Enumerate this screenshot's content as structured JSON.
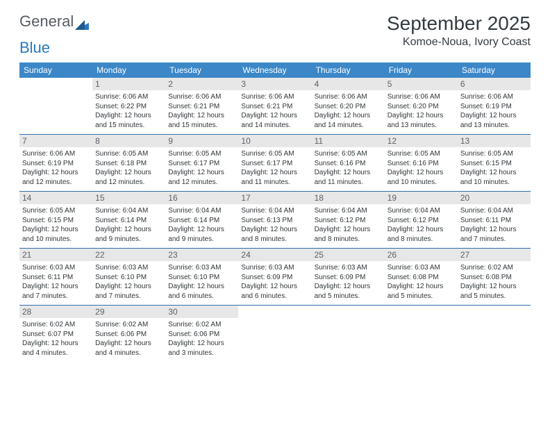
{
  "logo": {
    "word1": "General",
    "word2": "Blue"
  },
  "month_title": "September 2025",
  "location": "Komoe-Noua, Ivory Coast",
  "colors": {
    "header_bg": "#3b87c8",
    "header_text": "#ffffff",
    "daynum_bg": "#e7e7e7",
    "daynum_text": "#5b6168",
    "body_text": "#303538",
    "rule": "#2f6ea6",
    "logo_gray": "#555c63",
    "logo_blue": "#2879c0"
  },
  "day_headers": [
    "Sunday",
    "Monday",
    "Tuesday",
    "Wednesday",
    "Thursday",
    "Friday",
    "Saturday"
  ],
  "weeks": [
    [
      null,
      {
        "n": "1",
        "sr": "Sunrise: 6:06 AM",
        "ss": "Sunset: 6:22 PM",
        "d1": "Daylight: 12 hours",
        "d2": "and 15 minutes."
      },
      {
        "n": "2",
        "sr": "Sunrise: 6:06 AM",
        "ss": "Sunset: 6:21 PM",
        "d1": "Daylight: 12 hours",
        "d2": "and 15 minutes."
      },
      {
        "n": "3",
        "sr": "Sunrise: 6:06 AM",
        "ss": "Sunset: 6:21 PM",
        "d1": "Daylight: 12 hours",
        "d2": "and 14 minutes."
      },
      {
        "n": "4",
        "sr": "Sunrise: 6:06 AM",
        "ss": "Sunset: 6:20 PM",
        "d1": "Daylight: 12 hours",
        "d2": "and 14 minutes."
      },
      {
        "n": "5",
        "sr": "Sunrise: 6:06 AM",
        "ss": "Sunset: 6:20 PM",
        "d1": "Daylight: 12 hours",
        "d2": "and 13 minutes."
      },
      {
        "n": "6",
        "sr": "Sunrise: 6:06 AM",
        "ss": "Sunset: 6:19 PM",
        "d1": "Daylight: 12 hours",
        "d2": "and 13 minutes."
      }
    ],
    [
      {
        "n": "7",
        "sr": "Sunrise: 6:06 AM",
        "ss": "Sunset: 6:19 PM",
        "d1": "Daylight: 12 hours",
        "d2": "and 12 minutes."
      },
      {
        "n": "8",
        "sr": "Sunrise: 6:05 AM",
        "ss": "Sunset: 6:18 PM",
        "d1": "Daylight: 12 hours",
        "d2": "and 12 minutes."
      },
      {
        "n": "9",
        "sr": "Sunrise: 6:05 AM",
        "ss": "Sunset: 6:17 PM",
        "d1": "Daylight: 12 hours",
        "d2": "and 12 minutes."
      },
      {
        "n": "10",
        "sr": "Sunrise: 6:05 AM",
        "ss": "Sunset: 6:17 PM",
        "d1": "Daylight: 12 hours",
        "d2": "and 11 minutes."
      },
      {
        "n": "11",
        "sr": "Sunrise: 6:05 AM",
        "ss": "Sunset: 6:16 PM",
        "d1": "Daylight: 12 hours",
        "d2": "and 11 minutes."
      },
      {
        "n": "12",
        "sr": "Sunrise: 6:05 AM",
        "ss": "Sunset: 6:16 PM",
        "d1": "Daylight: 12 hours",
        "d2": "and 10 minutes."
      },
      {
        "n": "13",
        "sr": "Sunrise: 6:05 AM",
        "ss": "Sunset: 6:15 PM",
        "d1": "Daylight: 12 hours",
        "d2": "and 10 minutes."
      }
    ],
    [
      {
        "n": "14",
        "sr": "Sunrise: 6:05 AM",
        "ss": "Sunset: 6:15 PM",
        "d1": "Daylight: 12 hours",
        "d2": "and 10 minutes."
      },
      {
        "n": "15",
        "sr": "Sunrise: 6:04 AM",
        "ss": "Sunset: 6:14 PM",
        "d1": "Daylight: 12 hours",
        "d2": "and 9 minutes."
      },
      {
        "n": "16",
        "sr": "Sunrise: 6:04 AM",
        "ss": "Sunset: 6:14 PM",
        "d1": "Daylight: 12 hours",
        "d2": "and 9 minutes."
      },
      {
        "n": "17",
        "sr": "Sunrise: 6:04 AM",
        "ss": "Sunset: 6:13 PM",
        "d1": "Daylight: 12 hours",
        "d2": "and 8 minutes."
      },
      {
        "n": "18",
        "sr": "Sunrise: 6:04 AM",
        "ss": "Sunset: 6:12 PM",
        "d1": "Daylight: 12 hours",
        "d2": "and 8 minutes."
      },
      {
        "n": "19",
        "sr": "Sunrise: 6:04 AM",
        "ss": "Sunset: 6:12 PM",
        "d1": "Daylight: 12 hours",
        "d2": "and 8 minutes."
      },
      {
        "n": "20",
        "sr": "Sunrise: 6:04 AM",
        "ss": "Sunset: 6:11 PM",
        "d1": "Daylight: 12 hours",
        "d2": "and 7 minutes."
      }
    ],
    [
      {
        "n": "21",
        "sr": "Sunrise: 6:03 AM",
        "ss": "Sunset: 6:11 PM",
        "d1": "Daylight: 12 hours",
        "d2": "and 7 minutes."
      },
      {
        "n": "22",
        "sr": "Sunrise: 6:03 AM",
        "ss": "Sunset: 6:10 PM",
        "d1": "Daylight: 12 hours",
        "d2": "and 7 minutes."
      },
      {
        "n": "23",
        "sr": "Sunrise: 6:03 AM",
        "ss": "Sunset: 6:10 PM",
        "d1": "Daylight: 12 hours",
        "d2": "and 6 minutes."
      },
      {
        "n": "24",
        "sr": "Sunrise: 6:03 AM",
        "ss": "Sunset: 6:09 PM",
        "d1": "Daylight: 12 hours",
        "d2": "and 6 minutes."
      },
      {
        "n": "25",
        "sr": "Sunrise: 6:03 AM",
        "ss": "Sunset: 6:09 PM",
        "d1": "Daylight: 12 hours",
        "d2": "and 5 minutes."
      },
      {
        "n": "26",
        "sr": "Sunrise: 6:03 AM",
        "ss": "Sunset: 6:08 PM",
        "d1": "Daylight: 12 hours",
        "d2": "and 5 minutes."
      },
      {
        "n": "27",
        "sr": "Sunrise: 6:02 AM",
        "ss": "Sunset: 6:08 PM",
        "d1": "Daylight: 12 hours",
        "d2": "and 5 minutes."
      }
    ],
    [
      {
        "n": "28",
        "sr": "Sunrise: 6:02 AM",
        "ss": "Sunset: 6:07 PM",
        "d1": "Daylight: 12 hours",
        "d2": "and 4 minutes."
      },
      {
        "n": "29",
        "sr": "Sunrise: 6:02 AM",
        "ss": "Sunset: 6:06 PM",
        "d1": "Daylight: 12 hours",
        "d2": "and 4 minutes."
      },
      {
        "n": "30",
        "sr": "Sunrise: 6:02 AM",
        "ss": "Sunset: 6:06 PM",
        "d1": "Daylight: 12 hours",
        "d2": "and 3 minutes."
      },
      null,
      null,
      null,
      null
    ]
  ]
}
